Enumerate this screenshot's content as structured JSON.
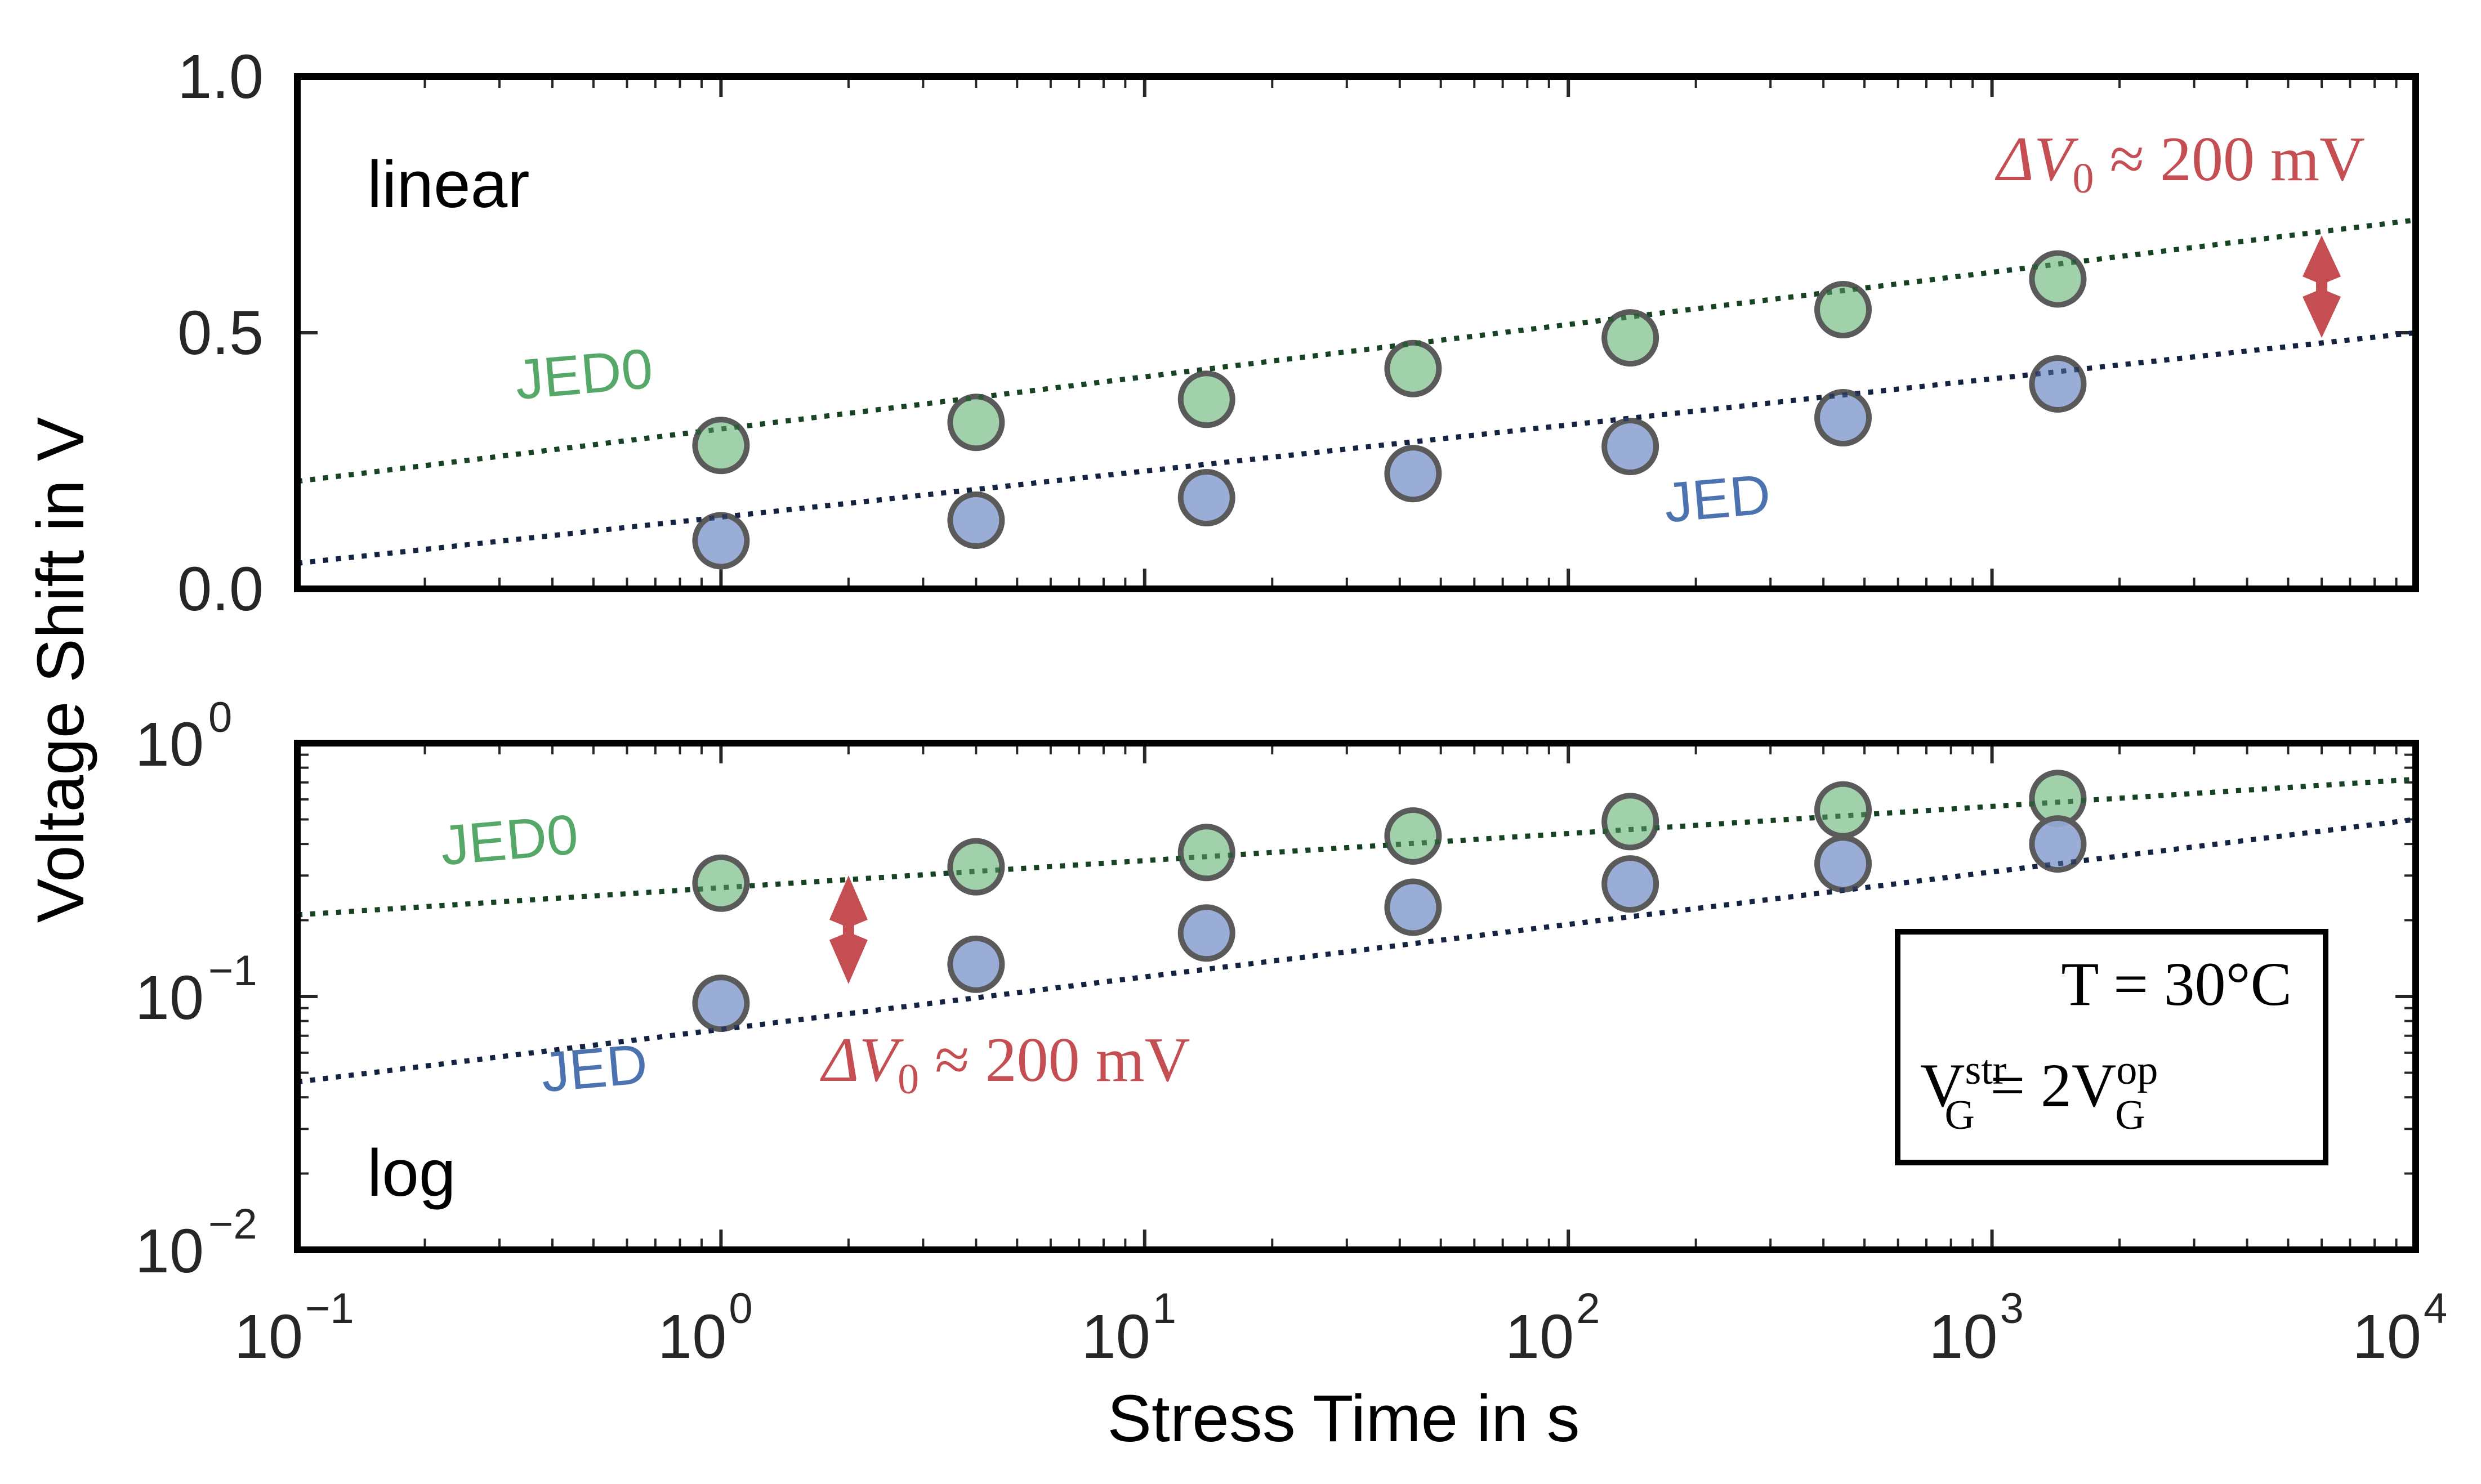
{
  "chart_data": [
    {
      "panel": "top",
      "type": "scatter",
      "yscale": "linear",
      "xscale": "log",
      "panel_label": "linear",
      "xlim": [
        0.1,
        10000
      ],
      "ylim": [
        0.0,
        1.0
      ],
      "yticks": [
        0.0,
        0.5,
        1.0
      ],
      "ytick_labels": [
        "0.0",
        "0.5",
        "1.0"
      ],
      "grid": false,
      "series": [
        {
          "name": "JED0",
          "color": "#55a868",
          "x": [
            1,
            4,
            14,
            43,
            140,
            445,
            1430
          ],
          "y": [
            0.28,
            0.325,
            0.37,
            0.43,
            0.49,
            0.545,
            0.605
          ],
          "fit": {
            "style": "dotted",
            "x": [
              0.1,
              10000
            ],
            "y": [
              0.21,
              0.72
            ]
          }
        },
        {
          "name": "JED",
          "color": "#4c72b0",
          "x": [
            1,
            4,
            14,
            43,
            140,
            445,
            1430
          ],
          "y": [
            0.094,
            0.134,
            0.178,
            0.225,
            0.278,
            0.334,
            0.4
          ],
          "fit": {
            "style": "dotted",
            "x": [
              0.1,
              10000
            ],
            "y": [
              0.05,
              0.5
            ]
          }
        }
      ],
      "annotations": [
        {
          "text": "ΔV₀ ≈ 200 mV",
          "color": "#c44e52",
          "arrow_x": 6000,
          "arrow_y": [
            0.49,
            0.69
          ]
        }
      ],
      "series_labels": [
        {
          "text": "JED0",
          "color": "#55a868",
          "x": 0.33,
          "y": 0.37
        },
        {
          "text": "JED",
          "color": "#4c72b0",
          "x": 170,
          "y": 0.13
        }
      ]
    },
    {
      "panel": "bottom",
      "type": "scatter",
      "yscale": "log",
      "xscale": "log",
      "panel_label": "log",
      "xlim": [
        0.1,
        10000
      ],
      "ylim": [
        0.01,
        1.0
      ],
      "yticks": [
        0.01,
        0.1,
        1.0
      ],
      "ytick_labels": [
        {
          "base": "10",
          "exp": "−2"
        },
        {
          "base": "10",
          "exp": "−1"
        },
        {
          "base": "10",
          "exp": "0"
        }
      ],
      "xticks": [
        0.1,
        1,
        10,
        100,
        1000,
        10000
      ],
      "xtick_labels": [
        {
          "base": "10",
          "exp": "−1"
        },
        {
          "base": "10",
          "exp": "0"
        },
        {
          "base": "10",
          "exp": "1"
        },
        {
          "base": "10",
          "exp": "2"
        },
        {
          "base": "10",
          "exp": "3"
        },
        {
          "base": "10",
          "exp": "4"
        }
      ],
      "grid": false,
      "series": [
        {
          "name": "JED0",
          "color": "#55a868",
          "x": [
            1,
            4,
            14,
            43,
            140,
            445,
            1430
          ],
          "y": [
            0.28,
            0.325,
            0.37,
            0.43,
            0.49,
            0.545,
            0.605
          ],
          "fit": {
            "style": "dotted",
            "x": [
              0.1,
              10000
            ],
            "y": [
              0.21,
              0.72
            ]
          }
        },
        {
          "name": "JED",
          "color": "#4c72b0",
          "x": [
            1,
            4,
            14,
            43,
            140,
            445,
            1430
          ],
          "y": [
            0.094,
            0.134,
            0.178,
            0.225,
            0.278,
            0.334,
            0.4
          ],
          "fit": {
            "style": "dotted",
            "x": [
              0.1,
              10000
            ],
            "y": [
              0.046,
              0.5
            ]
          }
        }
      ],
      "annotations": [
        {
          "text": "ΔV₀ ≈ 200 mV",
          "color": "#c44e52",
          "arrow_x": 2,
          "arrow_y": [
            0.112,
            0.3
          ]
        }
      ],
      "series_labels": [
        {
          "text": "JED0",
          "color": "#55a868",
          "x": 0.22,
          "y": 0.33
        },
        {
          "text": "JED",
          "color": "#4c72b0",
          "x": 0.38,
          "y": 0.042
        }
      ],
      "legend_box": {
        "location": "lower-right",
        "lines": [
          "T = 30°C",
          "V_G^str = 2 V_G^op"
        ]
      }
    }
  ],
  "labels": {
    "xlabel": "Stress Time in s",
    "ylabel": "Voltage Shift in V",
    "top_panel": "linear",
    "bottom_panel": "log",
    "jed0": "JED0",
    "jed": "JED",
    "annotation_delta": "ΔV",
    "annotation_sub": "0",
    "annotation_rest": " ≈ 200 mV",
    "box_T": "T = 30°C",
    "box_V": "V",
    "box_G": "G",
    "box_str": "str",
    "box_eq": " = 2V",
    "box_op": "op"
  },
  "colors": {
    "jed0": "#55a868",
    "jed0_fill": "#9bcfa6",
    "jed": "#4c72b0",
    "jed_fill": "#94a9d4",
    "annotation": "#c44e52",
    "marker_edge": "#5a5a5a",
    "axis": "#000000"
  }
}
